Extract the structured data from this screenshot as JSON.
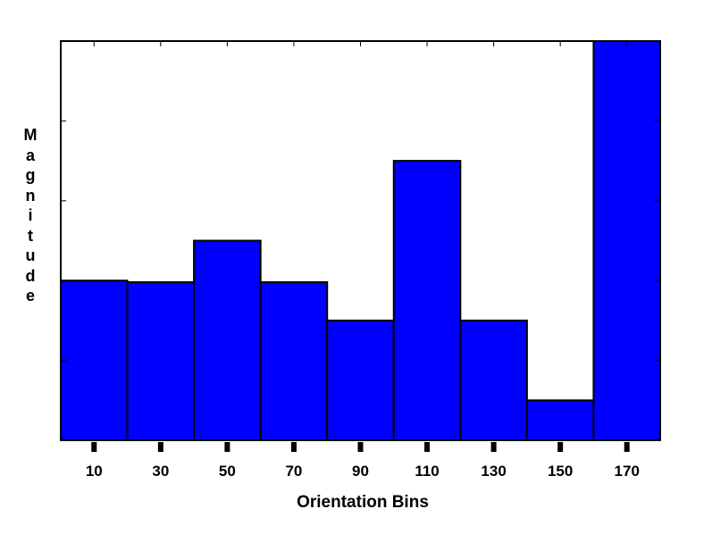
{
  "chart_data": {
    "type": "bar",
    "xlabel": "Orientation Bins",
    "ylabel": "Magnitude",
    "categories": [
      "10",
      "30",
      "50",
      "70",
      "90",
      "110",
      "130",
      "150",
      "170"
    ],
    "values": [
      2.0,
      1.98,
      2.5,
      1.98,
      1.5,
      3.5,
      1.5,
      0.5,
      5.0
    ],
    "ylim": [
      0,
      5
    ],
    "bar_color": "#0000ff",
    "bar_edge_color": "#000000",
    "grid": false
  }
}
